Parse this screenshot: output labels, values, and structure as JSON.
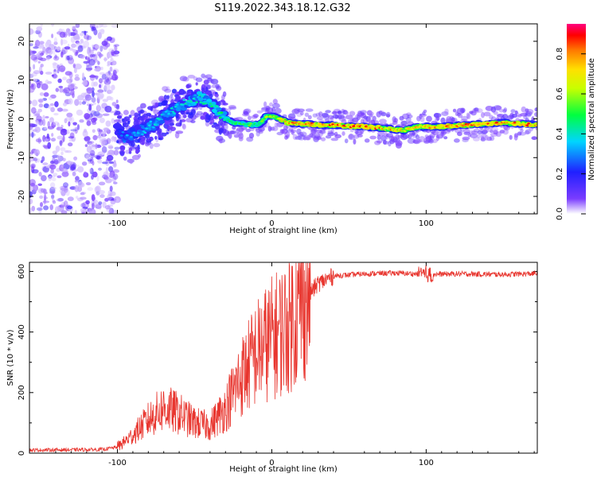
{
  "figure": {
    "title": "S119.2022.343.18.12.G32"
  },
  "chart_data": [
    {
      "type": "heatmap",
      "title": "S119.2022.343.18.12.G32",
      "xlabel": "Height of straight line (km)",
      "ylabel": "Frequency (Hz)",
      "xlim": [
        -157,
        172
      ],
      "ylim": [
        -24.5,
        24.5
      ],
      "x_ticks": [
        -100,
        0,
        100
      ],
      "x_tick_labels": [
        "-100",
        "0",
        "100"
      ],
      "y_ticks": [
        -20,
        -10,
        0,
        10,
        20
      ],
      "y_tick_labels": [
        "-20",
        "-10",
        "0",
        "10",
        "20"
      ],
      "colorbar": {
        "label": "Normalized spectral amplitude",
        "range": [
          0,
          0.95
        ],
        "ticks": [
          0.0,
          0.2,
          0.4,
          0.6,
          0.8
        ],
        "tick_labels": [
          "0.0",
          "0.2",
          "0.4",
          "0.6",
          "0.8"
        ],
        "colormap": "rainbow"
      },
      "ridge": {
        "description_points": [
          {
            "x": -100,
            "y": -3,
            "amp": 0.25
          },
          {
            "x": -95,
            "y": -5,
            "amp": 0.35
          },
          {
            "x": -85,
            "y": -3,
            "amp": 0.35
          },
          {
            "x": -75,
            "y": -1,
            "amp": 0.4
          },
          {
            "x": -65,
            "y": 2,
            "amp": 0.4
          },
          {
            "x": -55,
            "y": 4,
            "amp": 0.4
          },
          {
            "x": -47,
            "y": 5.5,
            "amp": 0.45
          },
          {
            "x": -40,
            "y": 4,
            "amp": 0.45
          },
          {
            "x": -33,
            "y": 1,
            "amp": 0.5
          },
          {
            "x": -25,
            "y": -1,
            "amp": 0.55
          },
          {
            "x": -15,
            "y": -1.5,
            "amp": 0.55
          },
          {
            "x": -8,
            "y": -1.5,
            "amp": 0.55
          },
          {
            "x": -3,
            "y": 0.8,
            "amp": 0.65
          },
          {
            "x": 3,
            "y": 0.5,
            "amp": 0.7
          },
          {
            "x": 10,
            "y": -1,
            "amp": 0.8
          },
          {
            "x": 30,
            "y": -1.5,
            "amp": 0.85
          },
          {
            "x": 60,
            "y": -2,
            "amp": 0.9
          },
          {
            "x": 75,
            "y": -2.5,
            "amp": 0.8
          },
          {
            "x": 85,
            "y": -3,
            "amp": 0.75
          },
          {
            "x": 95,
            "y": -2,
            "amp": 0.8
          },
          {
            "x": 110,
            "y": -2,
            "amp": 0.85
          },
          {
            "x": 130,
            "y": -1.5,
            "amp": 0.85
          },
          {
            "x": 150,
            "y": -1,
            "amp": 0.85
          },
          {
            "x": 170,
            "y": -1.5,
            "amp": 0.85
          }
        ]
      }
    },
    {
      "type": "line",
      "xlabel": "Height of straight line (km)",
      "ylabel": "SNR (10 * v/v)",
      "xlim": [
        -157,
        172
      ],
      "ylim": [
        0,
        630
      ],
      "x_ticks": [
        -100,
        0,
        100
      ],
      "x_tick_labels": [
        "-100",
        "0",
        "100"
      ],
      "y_ticks": [
        0,
        200,
        400,
        600
      ],
      "y_tick_labels": [
        "0",
        "200",
        "400",
        "600"
      ],
      "series": [
        {
          "color": "#e8352e",
          "envelope_points": [
            {
              "x": -157,
              "y": 10
            },
            {
              "x": -110,
              "y": 12
            },
            {
              "x": -100,
              "y": 20
            },
            {
              "x": -90,
              "y": 60
            },
            {
              "x": -80,
              "y": 110
            },
            {
              "x": -70,
              "y": 150
            },
            {
              "x": -60,
              "y": 130
            },
            {
              "x": -50,
              "y": 100
            },
            {
              "x": -40,
              "y": 90
            },
            {
              "x": -30,
              "y": 150
            },
            {
              "x": -20,
              "y": 250
            },
            {
              "x": -10,
              "y": 330
            },
            {
              "x": 0,
              "y": 380
            },
            {
              "x": 10,
              "y": 420
            },
            {
              "x": 20,
              "y": 500
            },
            {
              "x": 30,
              "y": 560
            },
            {
              "x": 40,
              "y": 585
            },
            {
              "x": 60,
              "y": 592
            },
            {
              "x": 80,
              "y": 595
            },
            {
              "x": 100,
              "y": 590
            },
            {
              "x": 120,
              "y": 592
            },
            {
              "x": 150,
              "y": 590
            },
            {
              "x": 172,
              "y": 593
            }
          ]
        }
      ]
    }
  ]
}
